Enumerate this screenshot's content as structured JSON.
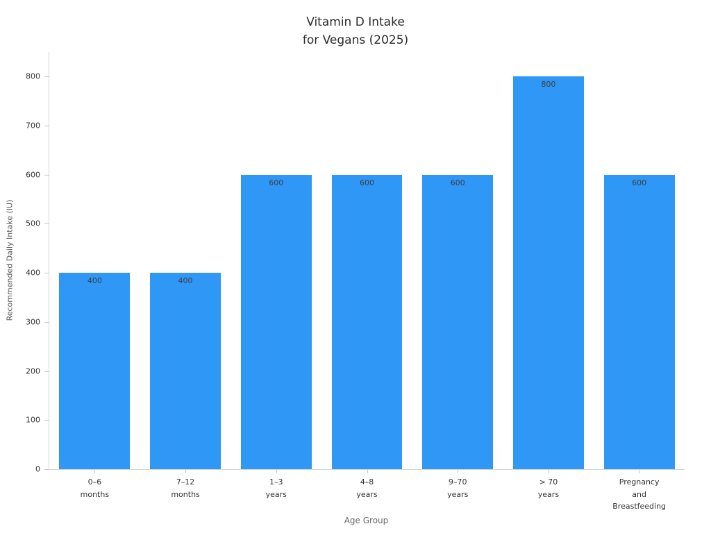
{
  "colors": {
    "bar_fill": "#2f97f5",
    "axis_line": "#d4d4d4",
    "tick_text": "#333333",
    "bar_label_text": "#3a3f44",
    "title_text": "#2b2b2b",
    "axis_title_text": "#555555"
  },
  "chart_data": {
    "type": "bar",
    "title": "Vitamin D Intake\nfor Vegans (2025)",
    "xlabel": "Age Group",
    "ylabel": "Recommended Daily Intake (IU)",
    "categories": [
      "0–6\nmonths",
      "7–12\nmonths",
      "1–3\nyears",
      "4–8\nyears",
      "9–70\nyears",
      "> 70\nyears",
      "Pregnancy\nand\nBreastfeeding"
    ],
    "values": [
      400,
      400,
      600,
      600,
      600,
      800,
      600
    ],
    "value_labels": [
      "400",
      "400",
      "600",
      "600",
      "600",
      "800",
      "600"
    ],
    "yticks": [
      0,
      100,
      200,
      300,
      400,
      500,
      600,
      700,
      800
    ],
    "ylim": [
      0,
      850
    ],
    "grid": false,
    "legend": "none"
  }
}
